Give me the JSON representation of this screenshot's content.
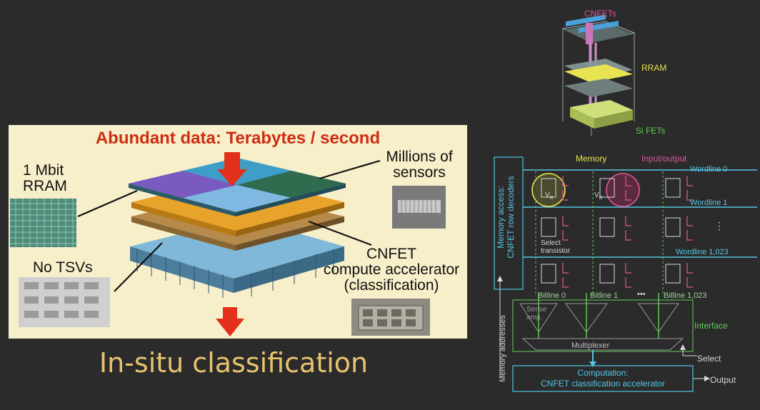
{
  "left": {
    "title": "Abundant data: Terabytes / second",
    "labels": {
      "rram_line1": "1 Mbit",
      "rram_line2": "RRAM",
      "sensors_line1": "Millions of",
      "sensors_line2": "sensors",
      "no_tsvs": "No TSVs",
      "cnfet_line1": "CNFET",
      "cnfet_line2": "compute accelerator",
      "cnfet_line3": "(classification)"
    },
    "caption": "In-situ classification"
  },
  "stack": {
    "cnfets": "CNFETs",
    "rram": "RRAM",
    "si_fets": "Si FETs"
  },
  "circuit": {
    "memory_access_line1": "Memory access:",
    "memory_access_line2": "CNFET row decoders",
    "memory": "Memory",
    "input_output": "Input/output",
    "wordline0": "Wordline 0",
    "wordline1": "Wordline 1",
    "wordline1023": "Wordline 1,023",
    "select_transistor_line1": "Select",
    "select_transistor_line2": "transistor",
    "bitline0": "Bitline 0",
    "bitline1": "Bitline 1",
    "bitline_dots": "•••",
    "bitline1023": "Bitline 1,023",
    "sense_amp_line1": "Sense",
    "sense_amp_line2": "amp.",
    "interface": "Interface",
    "multiplexer": "Multiplexer",
    "select": "Select",
    "memory_addresses": "Memory addresses",
    "computation_line1": "Computation:",
    "computation_line2": "CNFET classification accelerator",
    "output": "Output",
    "vertical_dots": "⋮",
    "v_r": "V",
    "v_r_sub": "R",
    "v_b": "V",
    "v_b_sub": "B"
  },
  "colors": {
    "background": "#2b2b2b",
    "panel": "#f6efc9",
    "title_red": "#cf2c12",
    "caption_gold": "#e7c36e",
    "wordline": "#53c6e4",
    "bitline_green": "#62cf55",
    "memory_yellow": "#e8e352",
    "io_pink": "#e0569a"
  }
}
